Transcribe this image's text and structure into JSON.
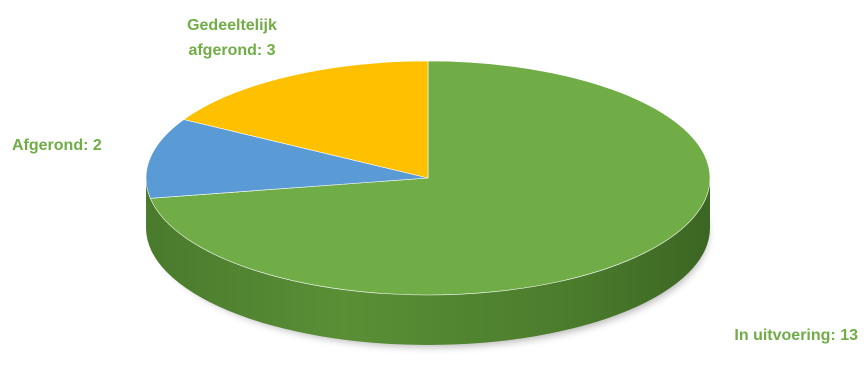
{
  "chart_data": {
    "type": "pie",
    "style": "3d",
    "slices": [
      {
        "name": "In uitvoering",
        "value": 13,
        "label": "In uitvoering: 13",
        "color": "#70ad47"
      },
      {
        "name": "Afgerond",
        "value": 2,
        "label": "Afgerond: 2",
        "color": "#5b9bd5"
      },
      {
        "name": "Gedeeltelijk afgerond",
        "value": 3,
        "label_lines": [
          "Gedeeltelijk",
          "afgerond: 3"
        ],
        "color": "#ffc000"
      }
    ]
  }
}
